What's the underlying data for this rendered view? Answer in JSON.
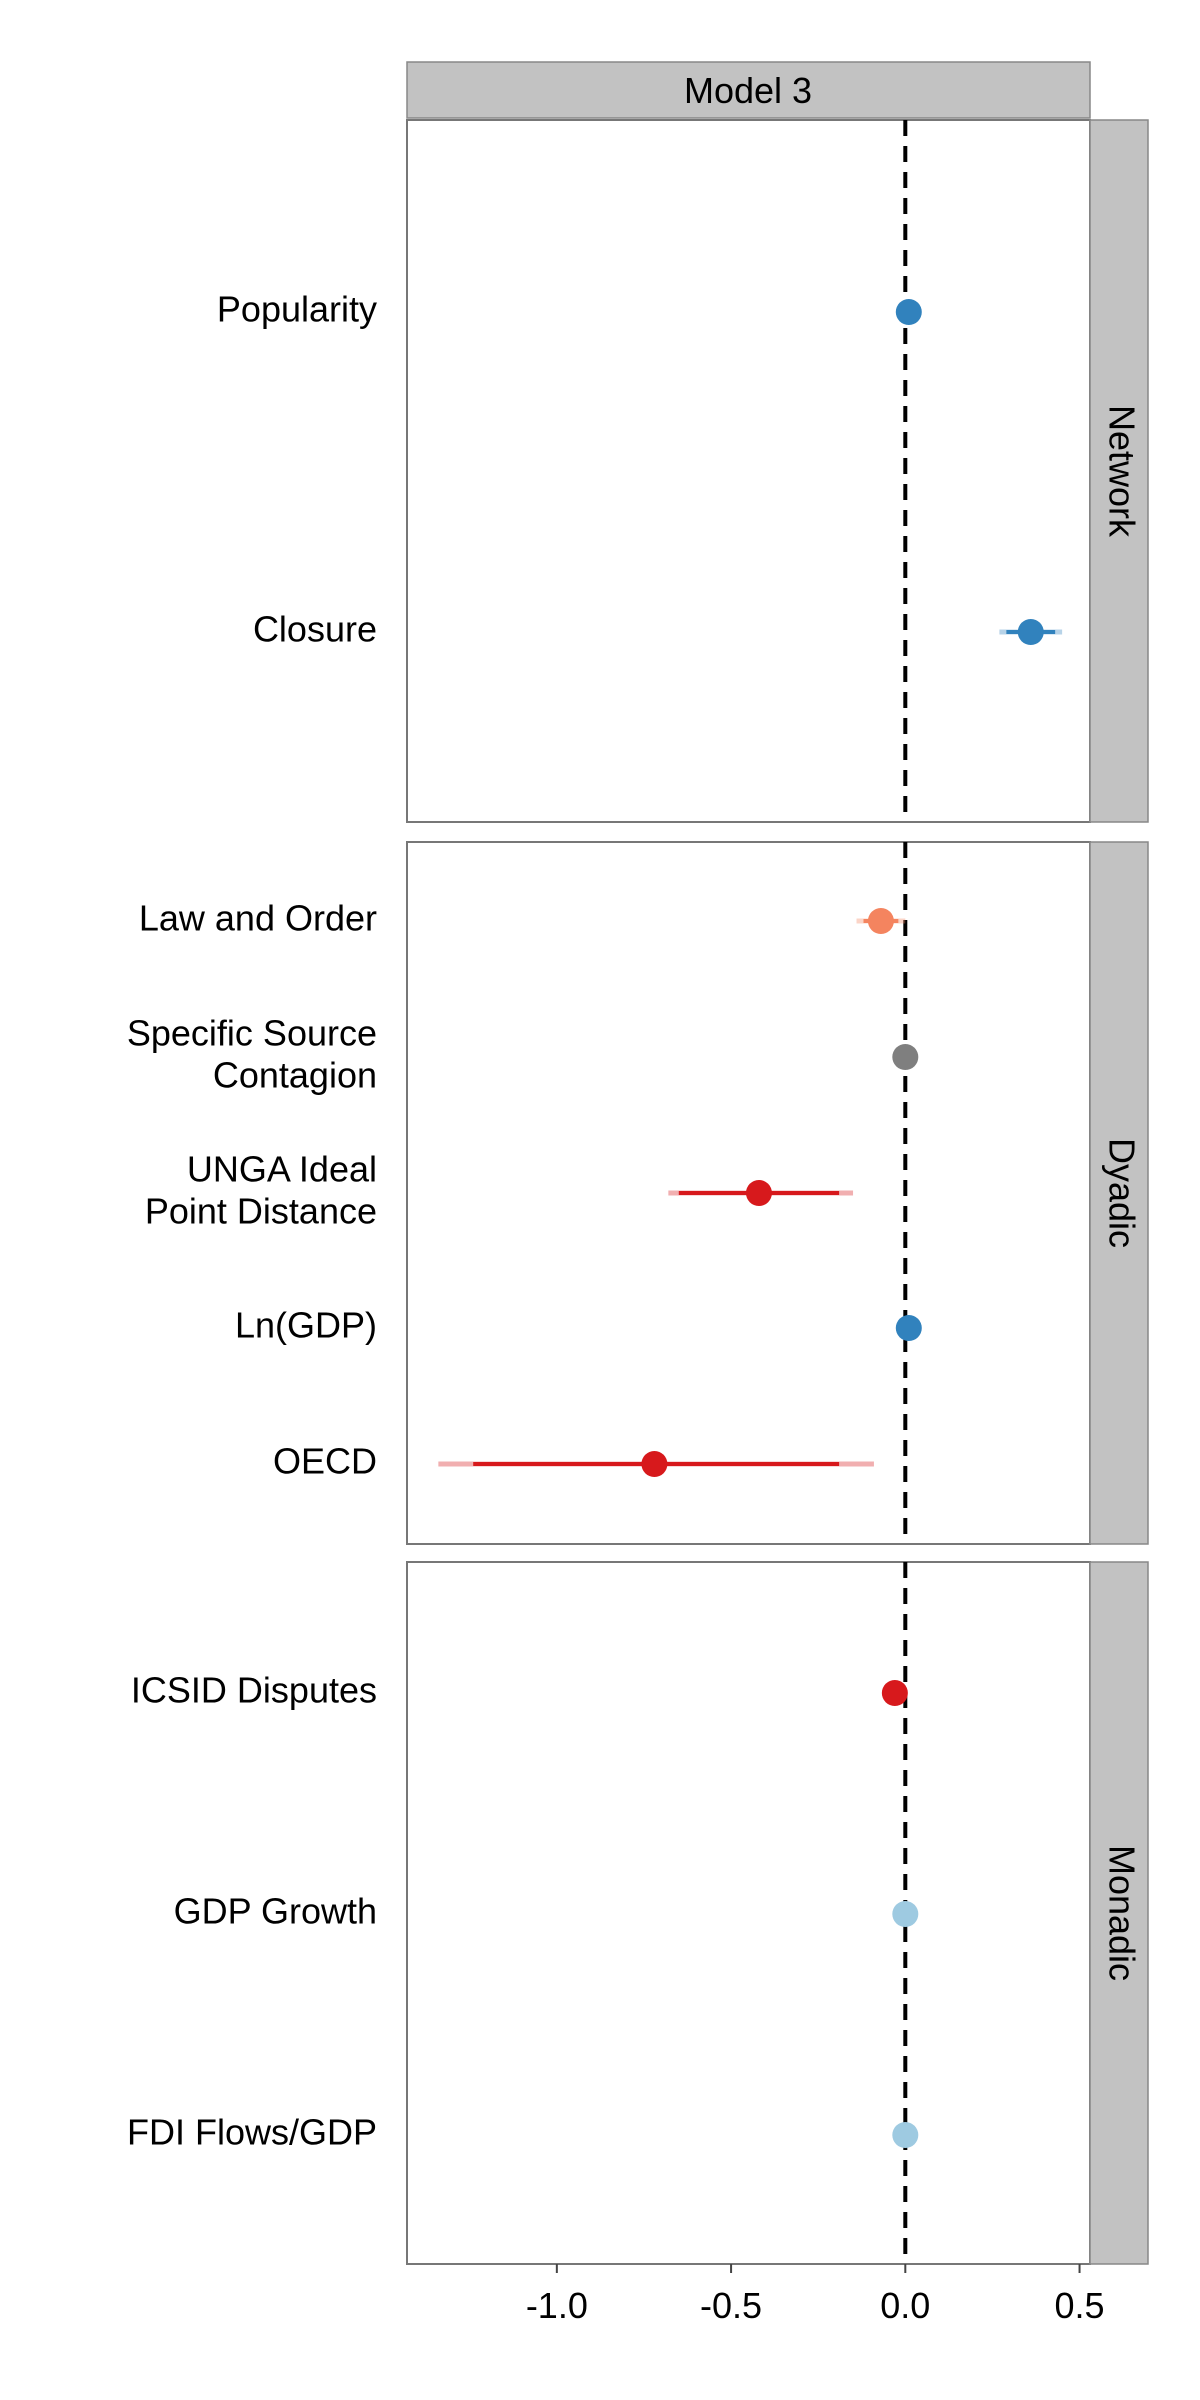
{
  "chart_data": {
    "type": "scatter",
    "subtype": "coefficient-plot",
    "title": "Model 3",
    "xlabel": "",
    "ylabel": "",
    "xlim": [
      -1.43,
      0.53
    ],
    "xticks": [
      -1.0,
      -0.5,
      0.0,
      0.5
    ],
    "xtick_labels": [
      "-1.0",
      "-0.5",
      "0.0",
      "0.5"
    ],
    "reference_line": 0.0,
    "grid": false,
    "legend": "none",
    "panels": [
      {
        "name": "Network",
        "variables": [
          {
            "label": [
              "Popularity"
            ],
            "estimate": 0.01,
            "ci90": [
              0.0,
              0.02
            ],
            "ci95": [
              0.0,
              0.02
            ],
            "color": "#3182bd"
          },
          {
            "label": [
              "Closure"
            ],
            "estimate": 0.36,
            "ci90": [
              0.29,
              0.43
            ],
            "ci95": [
              0.27,
              0.45
            ],
            "color": "#3182bd"
          }
        ]
      },
      {
        "name": "Dyadic",
        "variables": [
          {
            "label": [
              "Law and Order"
            ],
            "estimate": -0.07,
            "ci90": [
              -0.12,
              -0.02
            ],
            "ci95": [
              -0.14,
              0.0
            ],
            "color": "#f4845f"
          },
          {
            "label": [
              "Specific Source",
              "Contagion"
            ],
            "estimate": 0.0,
            "ci90": [
              -0.01,
              0.01
            ],
            "ci95": [
              -0.01,
              0.01
            ],
            "color": "#7f7f7f"
          },
          {
            "label": [
              "UNGA Ideal",
              "Point Distance"
            ],
            "estimate": -0.42,
            "ci90": [
              -0.65,
              -0.19
            ],
            "ci95": [
              -0.68,
              -0.15
            ],
            "color": "#d7191c"
          },
          {
            "label": [
              "Ln(GDP)"
            ],
            "estimate": 0.01,
            "ci90": [
              0.0,
              0.02
            ],
            "ci95": [
              0.0,
              0.02
            ],
            "color": "#3182bd"
          },
          {
            "label": [
              "OECD"
            ],
            "estimate": -0.72,
            "ci90": [
              -1.24,
              -0.19
            ],
            "ci95": [
              -1.34,
              -0.09
            ],
            "color": "#d7191c"
          }
        ]
      },
      {
        "name": "Monadic",
        "variables": [
          {
            "label": [
              "ICSID Disputes"
            ],
            "estimate": -0.03,
            "ci90": [
              -0.04,
              -0.02
            ],
            "ci95": [
              -0.04,
              -0.02
            ],
            "color": "#d7191c"
          },
          {
            "label": [
              "GDP Growth"
            ],
            "estimate": 0.0,
            "ci90": [
              -0.01,
              0.01
            ],
            "ci95": [
              -0.01,
              0.01
            ],
            "color": "#9ecae1"
          },
          {
            "label": [
              "FDI Flows/GDP"
            ],
            "estimate": 0.0,
            "ci90": [
              -0.01,
              0.01
            ],
            "ci95": [
              -0.01,
              0.01
            ],
            "color": "#9ecae1"
          }
        ]
      }
    ]
  }
}
